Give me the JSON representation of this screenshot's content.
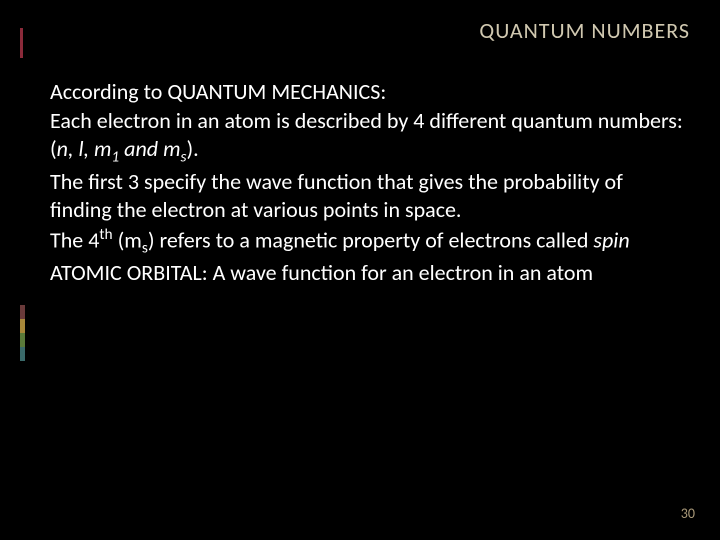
{
  "slide": {
    "title": "QUANTUM  NUMBERS",
    "page_number": "30",
    "background_color": "#000000",
    "title_color": "#d0c8b0",
    "text_color": "#ffffff",
    "accent_colors": {
      "red": "#8b2a3a",
      "yellow": "#c9a33a",
      "green": "#5a7a3a",
      "teal": "#3a6a6a"
    },
    "body": {
      "line1": "According to QUANTUM  MECHANICS:",
      "line2a": "Each electron in an atom is described by 4 different quantum numbers:  (",
      "line2_italic": "n, l, m",
      "line2_sub1": "1",
      "line2_and": " and m",
      "line2_sub2": "s",
      "line2_close": ").",
      "line3": "The first 3 specify the wave function that gives the probability of finding the electron at various points in space.",
      "line4a": "The 4",
      "line4_sup": "th",
      "line4b": " (m",
      "line4_sub": "s",
      "line4c": ") refers to a magnetic property of electrons called ",
      "line4_spin": "spin",
      "section2": "ATOMIC  ORBITAL: A wave function for an electron in an atom"
    }
  }
}
